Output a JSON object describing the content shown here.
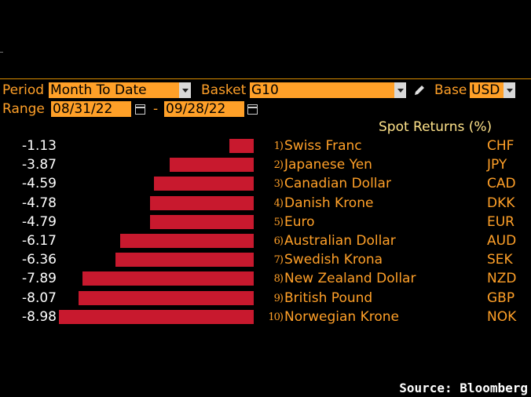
{
  "controls": {
    "period_label": "Period",
    "period_value": "Month To Date",
    "basket_label": "Basket",
    "basket_value": "G10",
    "base_label": "Base",
    "base_value": "USD",
    "range_label": "Range",
    "range_start": "08/31/22",
    "range_sep": "-",
    "range_end": "09/28/22"
  },
  "icons": {
    "dropdown": "chevron-down-icon",
    "calendar": "calendar-icon",
    "edit": "pencil-icon"
  },
  "colors": {
    "accent": "#ffa028",
    "bar": "#c8192e",
    "header_text": "#ffe38a",
    "background": "#000000"
  },
  "chart_data": {
    "type": "bar",
    "orientation": "horizontal",
    "title": "Spot Returns (%)",
    "ranks": [
      "1)",
      "2)",
      "3)",
      "4)",
      "5)",
      "6)",
      "7)",
      "8)",
      "9)",
      "10)"
    ],
    "categories": [
      "Swiss Franc",
      "Japanese Yen",
      "Canadian Dollar",
      "Danish Krone",
      "Euro",
      "Australian Dollar",
      "Swedish Krona",
      "New Zealand Dollar",
      "British Pound",
      "Norwegian Krone"
    ],
    "codes": [
      "CHF",
      "JPY",
      "CAD",
      "DKK",
      "EUR",
      "AUD",
      "SEK",
      "NZD",
      "GBP",
      "NOK"
    ],
    "values": [
      -1.13,
      -3.87,
      -4.59,
      -4.78,
      -4.79,
      -6.17,
      -6.36,
      -7.89,
      -8.07,
      -8.98
    ],
    "labels": [
      "-1.13",
      "-3.87",
      "-4.59",
      "-4.78",
      "-4.79",
      "-6.17",
      "-6.36",
      "-7.89",
      "-8.07",
      "-8.98"
    ],
    "xlim": [
      -8.98,
      0
    ],
    "grid": false
  },
  "source": "Source: Bloomberg"
}
